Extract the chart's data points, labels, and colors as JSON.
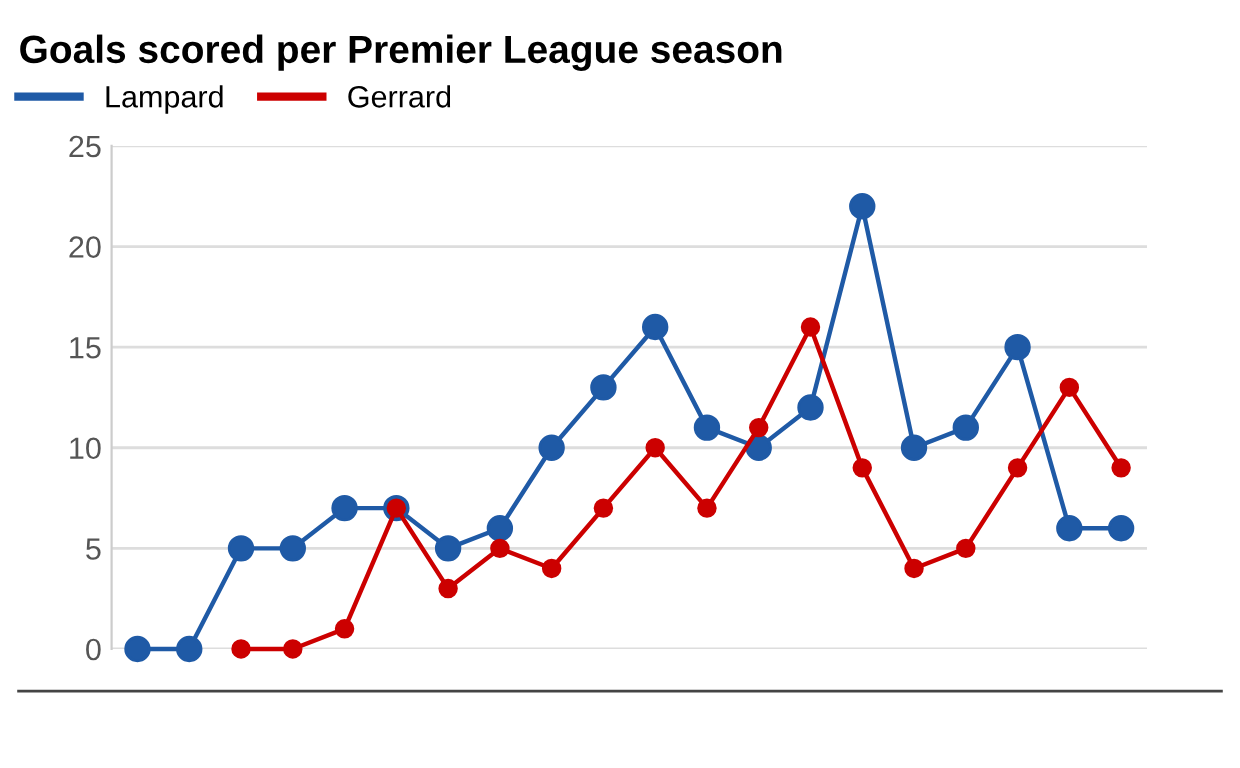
{
  "chart_data": {
    "type": "line",
    "title": "Goals scored per Premier League season",
    "categories": [
      null,
      null,
      null,
      null,
      null,
      null,
      null,
      null,
      null,
      null,
      null,
      null,
      null,
      null,
      null,
      null,
      null,
      null,
      null,
      null
    ],
    "series": [
      {
        "name": "Lampard",
        "color": "#1f5aa6",
        "values": [
          0,
          0,
          5,
          5,
          7,
          7,
          5,
          6,
          10,
          13,
          16,
          11,
          10,
          12,
          22,
          10,
          11,
          15,
          6,
          6
        ]
      },
      {
        "name": "Gerrard",
        "color": "#cc0000",
        "values": [
          null,
          null,
          0,
          0,
          1,
          7,
          3,
          5,
          4,
          7,
          10,
          7,
          11,
          16,
          9,
          4,
          5,
          9,
          13,
          9
        ]
      }
    ],
    "ylim": [
      0,
      25
    ],
    "yticks": [
      0,
      5,
      10,
      15,
      20,
      25
    ],
    "grid": "y",
    "legend": "top left",
    "marker": "circle",
    "line_style": "solid"
  }
}
